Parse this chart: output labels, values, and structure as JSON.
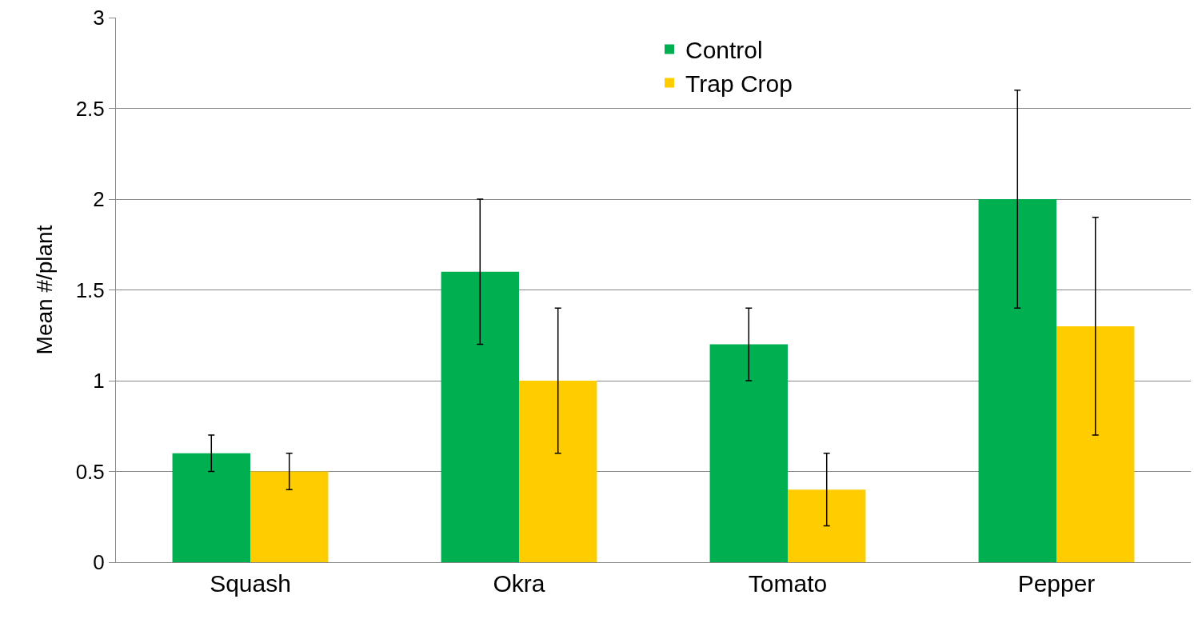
{
  "chart_data": {
    "type": "bar",
    "ylabel": "Mean #/plant",
    "categories": [
      "Squash",
      "Okra",
      "Tomato",
      "Pepper"
    ],
    "series": [
      {
        "name": "Control",
        "color": "#00b050",
        "values": [
          0.6,
          1.6,
          1.2,
          2.0
        ],
        "errors": [
          0.1,
          0.4,
          0.2,
          0.6
        ]
      },
      {
        "name": "Trap Crop",
        "color": "#ffcc00",
        "values": [
          0.5,
          1.0,
          0.4,
          1.3
        ],
        "errors": [
          0.1,
          0.4,
          0.2,
          0.6
        ]
      }
    ],
    "ylim": [
      0,
      3
    ],
    "yticks": [
      0,
      0.5,
      1,
      1.5,
      2,
      2.5,
      3
    ],
    "grid": "y",
    "legend": "top"
  }
}
